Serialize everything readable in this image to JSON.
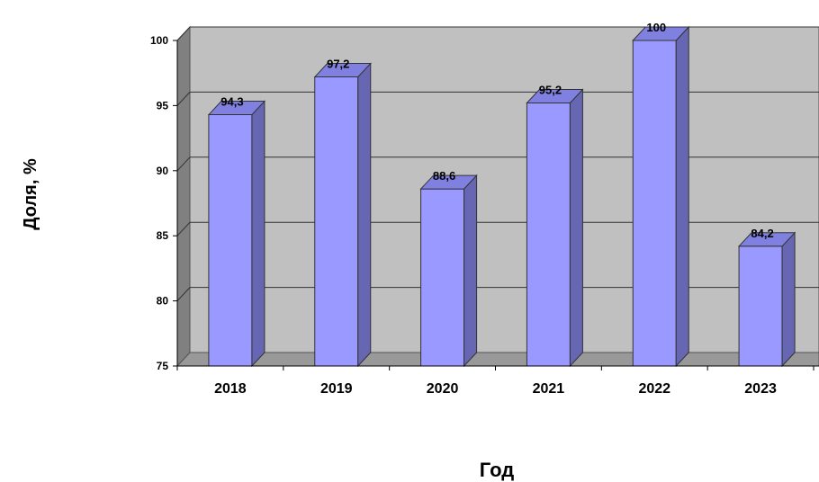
{
  "chart_data": {
    "type": "bar",
    "title": "",
    "xlabel": "Год",
    "ylabel": "Доля, %",
    "categories": [
      "2018",
      "2019",
      "2020",
      "2021",
      "2022",
      "2023"
    ],
    "values": [
      94.3,
      97.2,
      88.6,
      95.2,
      100,
      84.2
    ],
    "data_labels": [
      "94,3",
      "97,2",
      "88,6",
      "95,2",
      "100",
      "84,2"
    ],
    "y_ticks": [
      "75",
      "80",
      "85",
      "90",
      "95",
      "100"
    ],
    "ylim": [
      75,
      100
    ],
    "grid": true,
    "legend": "none",
    "three_d": true,
    "colors": {
      "bar_front": "#9999ff",
      "bar_side": "#6666b3",
      "bar_top": "#8080e0",
      "plot_back": "#c0c0c0",
      "plot_side_wall": "#808080",
      "plot_floor": "#999999"
    }
  }
}
